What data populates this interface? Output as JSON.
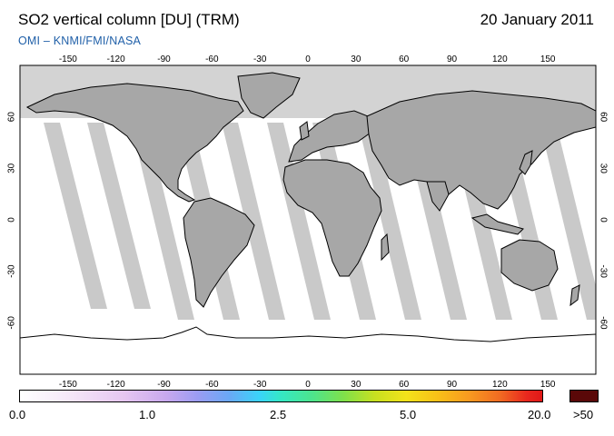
{
  "header": {
    "title": "SO2 vertical column [DU] (TRM)",
    "date": "20 January 2011",
    "subtitle": "OMI  –  KNMI/FMI/NASA"
  },
  "map": {
    "lon_ticks": [
      "-150",
      "-120",
      "-90",
      "-60",
      "-30",
      "0",
      "30",
      "60",
      "90",
      "120",
      "150"
    ],
    "lat_ticks": [
      "60",
      "30",
      "0",
      "-30",
      "-60"
    ],
    "polar_night_color": "#d3d3d3",
    "land_color": "#a6a6a6",
    "swath_gap_color": "#c8c8c8"
  },
  "colorbar": {
    "labels": [
      "0.0",
      "1.0",
      "2.5",
      "5.0",
      "20.0"
    ],
    "over_label": ">50",
    "over_color": "#5a0808"
  }
}
